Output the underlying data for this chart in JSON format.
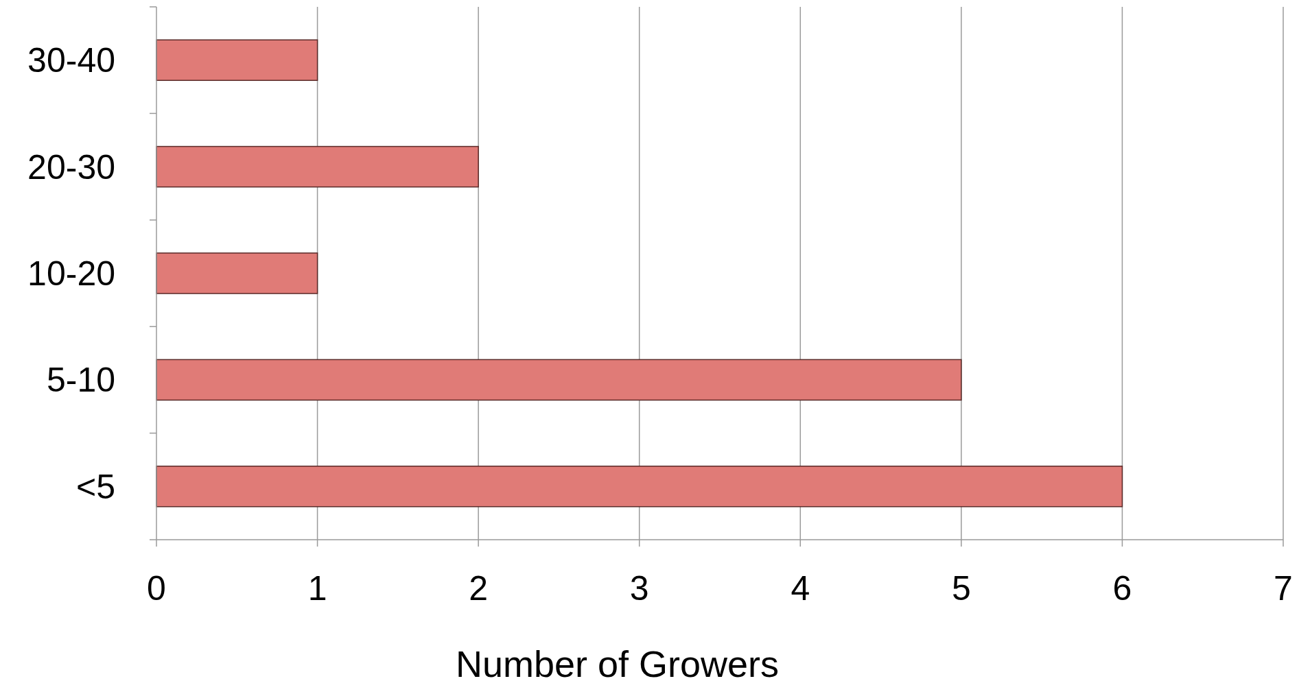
{
  "chart_data": {
    "type": "bar",
    "orientation": "horizontal",
    "xlabel": "Number of Growers",
    "categories": [
      "30-40",
      "20-30",
      "10-20",
      "5-10",
      "<5"
    ],
    "values": [
      1,
      2,
      1,
      5,
      6
    ],
    "color": "#e07b77",
    "xlim": [
      0,
      7
    ],
    "xticks": [
      0,
      1,
      2,
      3,
      4,
      5,
      6,
      7
    ],
    "grid": "x"
  }
}
